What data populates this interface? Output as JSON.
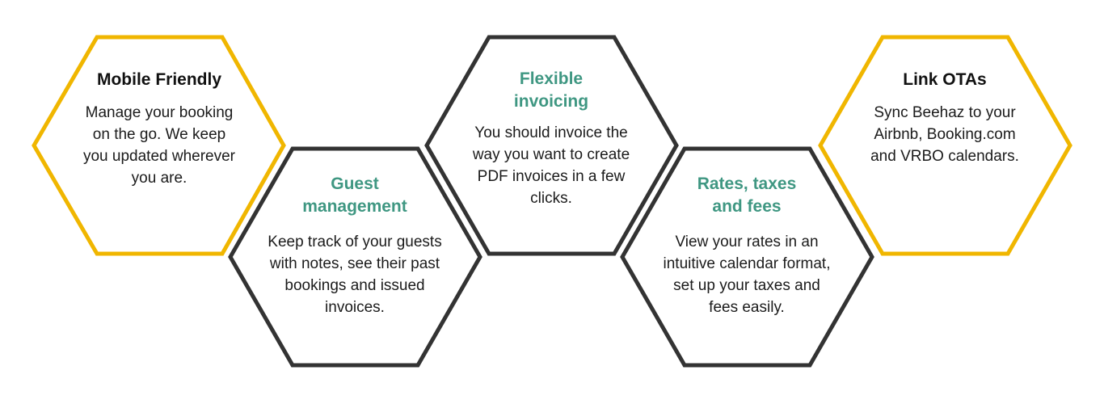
{
  "colors": {
    "accent_yellow": "#f0b600",
    "outline_dark": "#333333",
    "title_dark": "#111111",
    "title_teal": "#3f9782",
    "text": "#1b1b1b"
  },
  "features": [
    {
      "id": "mobile-friendly",
      "title": "Mobile Friendly",
      "title_tone": "dark",
      "outline": "yellow",
      "description": "Manage your booking on the go. We keep you updated wherever you are."
    },
    {
      "id": "guest-management",
      "title": "Guest management",
      "title_tone": "teal",
      "outline": "dark",
      "description": "Keep track of your guests with notes, see their past bookings and issued invoices."
    },
    {
      "id": "flexible-invoicing",
      "title": "Flexible invoicing",
      "title_tone": "teal",
      "outline": "dark",
      "description": "You should invoice the way you want to create PDF invoices in a few clicks."
    },
    {
      "id": "rates-taxes-fees",
      "title": "Rates, taxes and fees",
      "title_tone": "teal",
      "outline": "dark",
      "description": "View your rates in an intuitive calendar format, set up your taxes and fees easily."
    },
    {
      "id": "link-otas",
      "title": "Link OTAs",
      "title_tone": "dark",
      "outline": "yellow",
      "description": "Sync Beehaz to your Airbnb, Booking.com and VRBO calendars."
    }
  ]
}
